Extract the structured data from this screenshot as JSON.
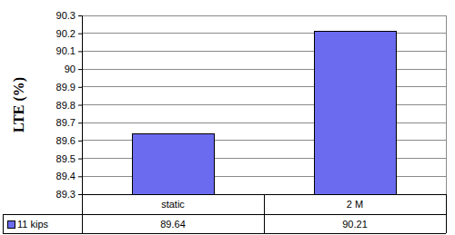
{
  "chart_data": {
    "type": "bar",
    "ylabel": "LTE (%)",
    "categories": [
      "static",
      "2 M"
    ],
    "series": [
      {
        "name": "11 kips",
        "color": "#6b6bef",
        "values": [
          89.64,
          90.21
        ]
      }
    ],
    "ylim": [
      89.3,
      90.3
    ],
    "yticks": [
      89.3,
      89.4,
      89.5,
      89.6,
      89.7,
      89.8,
      89.9,
      90,
      90.1,
      90.2,
      90.3
    ],
    "grid": true,
    "data_labels": true,
    "legend": "bottom-left"
  }
}
